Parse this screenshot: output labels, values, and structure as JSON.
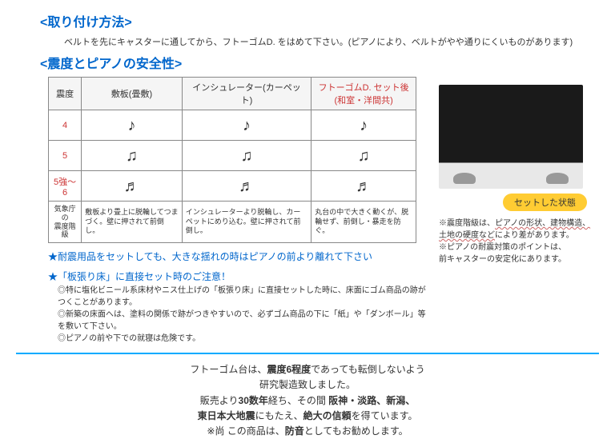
{
  "install": {
    "title": "<取り付け方法>",
    "text": "ベルトを先にキャスターに通してから、フトーゴムD. をはめて下さい。(ピアノにより、ベルトがやや通りにくいものがあります)"
  },
  "safety": {
    "title": "<震度とピアノの安全性>",
    "table": {
      "headers": [
        "震度",
        "敷板(畳敷)",
        "インシュレーター(カーペット)",
        "フトーゴムD. セット後\n(和室・洋間共)"
      ],
      "rows": [
        {
          "level": "4",
          "cells": [
            "♪",
            "♪",
            "♪"
          ]
        },
        {
          "level": "5",
          "cells": [
            "♫",
            "♫",
            "♫"
          ]
        },
        {
          "level": "5強〜6",
          "cells": [
            "♬",
            "♬",
            "♬"
          ]
        }
      ],
      "desc_header": "気象庁の\n震度階級",
      "descs": [
        "敷板より畳上に脱輪してつまづく。壁に押されて前倒し。",
        "インシュレーターより脱輪し、カーペットにめり込む。壁に押されて前倒し。",
        "丸台の中で大きく動くが、脱輪せず、前倒し・暴走を防ぐ。"
      ]
    }
  },
  "notes": {
    "star1": "★耐震用品をセットしても、大きな揺れの時はピアノの前より離れて下さい",
    "star2": "★「板張り床」に直接セット時のご注意！",
    "sub1": "◎特に塩化ビニール系床材やニス仕上げの「板張り床」に直接セットした時に、床面にゴム商品の跡がつくことがあります。",
    "sub2": "◎新築の床面へは、塗料の関係で跡がつきやすいので、必ずゴム商品の下に「紙」や「ダンボール」等を敷いて下さい。",
    "sub3": "◎ピアノの前や下での就寝は危険です。"
  },
  "right": {
    "badge": "セットした状態",
    "note1a": "※震度階級は、",
    "note1b": "ピアノの形状、建物構造、",
    "note2": "土地の硬度など",
    "note2b": "により差があります。",
    "note3": "※ピアノの耐震対策のポイントは、",
    "note4": "前キャスターの安定化にあります。"
  },
  "footer": {
    "l1a": "フトーゴム台は、",
    "l1b": "震度6程度",
    "l1c": "であっても転倒しないよう",
    "l2": "研究製造致しました。",
    "l3a": "販売より",
    "l3b": "30数年",
    "l3c": "経ち、その間 ",
    "l3d": "阪神・淡路、新潟、",
    "l4a": "東日本大地震",
    "l4b": "にもたえ、",
    "l4c": "絶大の信頼",
    "l4d": "を得ています。",
    "l5a": "※尚 この商品は、",
    "l5b": "防音",
    "l5c": "としてもお勧めします。"
  }
}
